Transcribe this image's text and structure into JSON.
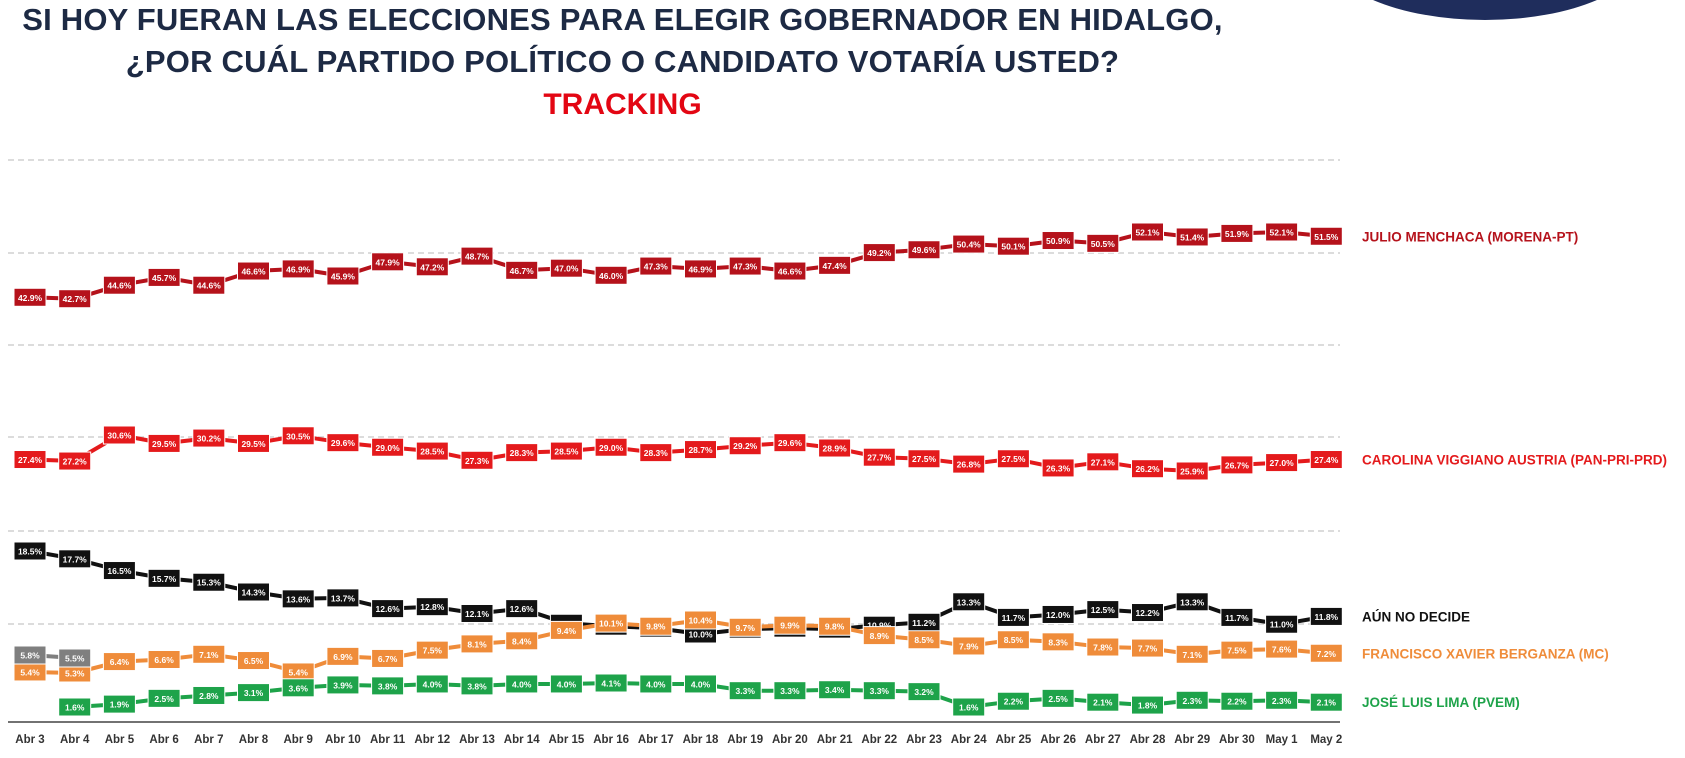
{
  "chart_data": {
    "type": "line",
    "title": "SI HOY FUERAN LAS ELECCIONES PARA ELEGIR GOBERNADOR EN HIDALGO,",
    "title_line2": "¿POR CUÁL PARTIDO POLÍTICO O CANDIDATO VOTARÍA USTED?",
    "subtitle": "TRACKING",
    "categories": [
      "Abr 3",
      "Abr 4",
      "Abr 5",
      "Abr 6",
      "Abr 7",
      "Abr 8",
      "Abr 9",
      "Abr 10",
      "Abr 11",
      "Abr 12",
      "Abr 13",
      "Abr 14",
      "Abr 15",
      "Abr 16",
      "Abr 17",
      "Abr 18",
      "Abr 19",
      "Abr 20",
      "Abr 21",
      "Abr 22",
      "Abr 23",
      "Abr 24",
      "Abr 25",
      "Abr 26",
      "Abr 27",
      "Abr 28",
      "Abr 29",
      "Abr 30",
      "May 1",
      "May 2"
    ],
    "ylim": [
      0,
      60
    ],
    "grid": true,
    "legend": "right",
    "series": [
      {
        "name": "JULIO MENCHACA (MORENA-PT)",
        "color": "#b5121b",
        "values": [
          42.9,
          42.7,
          44.6,
          45.7,
          44.6,
          46.6,
          46.9,
          45.9,
          47.9,
          47.2,
          48.7,
          46.7,
          47.0,
          46.0,
          47.3,
          46.9,
          47.3,
          46.6,
          47.4,
          49.2,
          49.6,
          50.4,
          50.1,
          50.9,
          50.5,
          52.1,
          51.4,
          51.9,
          52.1,
          51.5
        ]
      },
      {
        "name": "CAROLINA VIGGIANO AUSTRIA (PAN-PRI-PRD)",
        "color": "#e41a1c",
        "values": [
          27.4,
          27.2,
          30.6,
          29.5,
          30.2,
          29.5,
          30.5,
          29.6,
          29.0,
          28.5,
          27.3,
          28.3,
          28.5,
          29.0,
          28.3,
          28.7,
          29.2,
          29.6,
          28.9,
          27.7,
          27.5,
          26.8,
          27.5,
          26.3,
          27.1,
          26.2,
          25.9,
          26.7,
          27.0,
          27.4
        ]
      },
      {
        "name": "AÚN NO DECIDE",
        "color": "#111111",
        "values": [
          18.5,
          17.7,
          16.5,
          15.7,
          15.3,
          14.3,
          13.6,
          13.7,
          12.6,
          12.8,
          12.1,
          12.6,
          11.1,
          10.8,
          10.6,
          10.0,
          10.5,
          10.6,
          10.5,
          10.9,
          11.2,
          13.3,
          11.7,
          12.0,
          12.5,
          12.2,
          13.3,
          11.7,
          11.0,
          11.8
        ]
      },
      {
        "name": "FRANCISCO XAVIER BERGANZA (MC)",
        "color": "#ef8c3a",
        "values": [
          5.4,
          5.3,
          6.4,
          6.6,
          7.1,
          6.5,
          5.4,
          6.9,
          6.7,
          7.5,
          8.1,
          8.4,
          9.4,
          10.1,
          9.8,
          10.4,
          9.7,
          9.9,
          9.8,
          8.9,
          8.5,
          7.9,
          8.5,
          8.3,
          7.8,
          7.7,
          7.1,
          7.5,
          7.6,
          7.2
        ]
      },
      {
        "name": "JOSÉ LUIS LIMA (PVEM)",
        "color": "#1ea34a",
        "values": [
          null,
          1.6,
          1.9,
          2.5,
          2.8,
          3.1,
          3.6,
          3.9,
          3.8,
          4.0,
          3.8,
          4.0,
          4.0,
          4.1,
          4.0,
          4.0,
          3.3,
          3.3,
          3.4,
          3.3,
          3.2,
          1.6,
          2.2,
          2.5,
          2.1,
          1.8,
          2.3,
          2.2,
          2.3,
          2.1
        ]
      },
      {
        "name": "",
        "color": "#7f7f7f",
        "values": [
          5.8,
          5.5,
          null,
          null,
          null,
          null,
          null,
          null,
          null,
          null,
          null,
          null,
          null,
          null,
          null,
          null,
          null,
          null,
          null,
          null,
          null,
          null,
          null,
          null,
          null,
          null,
          null,
          null,
          null,
          null
        ]
      }
    ]
  }
}
